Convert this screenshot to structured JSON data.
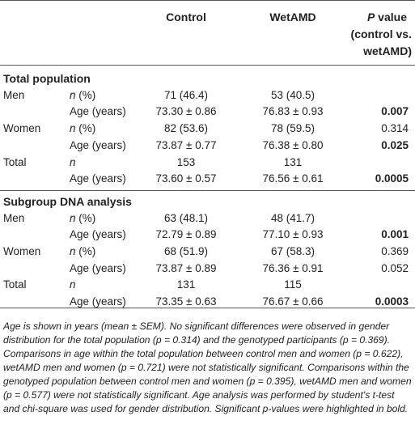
{
  "header": {
    "col_control": "Control",
    "col_wetamd": "WetAMD",
    "col_p_line1_em": "P",
    "col_p_line1_rest": " value",
    "col_p_line2": "(control vs.",
    "col_p_line3": "wetAMD)"
  },
  "sections": [
    {
      "title": "Total population",
      "rows": [
        {
          "group": "Men",
          "measure": "n (%)",
          "measure_italic_n": true,
          "control": "71 (46.4)",
          "wetamd": "53 (40.5)",
          "p": "",
          "p_bold": false
        },
        {
          "group": "",
          "measure": "Age (years)",
          "control": "73.30 ± 0.86",
          "wetamd": "76.83 ± 0.93",
          "p": "0.007",
          "p_bold": true
        },
        {
          "group": "Women",
          "measure": "n (%)",
          "control": "82 (53.6)",
          "wetamd": "78 (59.5)",
          "p": "0.314",
          "p_bold": false
        },
        {
          "group": "",
          "measure": "Age (years)",
          "control": "73.87 ± 0.77",
          "wetamd": "76.38 ± 0.80",
          "p": "0.025",
          "p_bold": true
        },
        {
          "group": "Total",
          "measure": "n",
          "control": "153",
          "wetamd": "131",
          "p": "",
          "p_bold": false
        },
        {
          "group": "",
          "measure": "Age (years)",
          "control": "73.60 ± 0.57",
          "wetamd": "76.56 ± 0.61",
          "p": "0.0005",
          "p_bold": true
        }
      ]
    },
    {
      "title": "Subgroup DNA analysis",
      "rows": [
        {
          "group": "Men",
          "measure": "n (%)",
          "control": "63 (48.1)",
          "wetamd": "48 (41.7)",
          "p": "",
          "p_bold": false
        },
        {
          "group": "",
          "measure": "Age (years)",
          "control": "72.79 ± 0.89",
          "wetamd": "77.10 ± 0.93",
          "p": "0.001",
          "p_bold": true
        },
        {
          "group": "Women",
          "measure": "n (%)",
          "control": "68 (51.9)",
          "wetamd": "67 (58.3)",
          "p": "0.369",
          "p_bold": false
        },
        {
          "group": "",
          "measure": "Age (years)",
          "control": "73.87 ± 0.89",
          "wetamd": "76.36 ± 0.91",
          "p": "0.052",
          "p_bold": false
        },
        {
          "group": "Total",
          "measure": "n",
          "control": "131",
          "wetamd": "115",
          "p": "",
          "p_bold": false
        },
        {
          "group": "",
          "measure": "Age (years)",
          "control": "73.35 ± 0.63",
          "wetamd": "76.67 ± 0.66",
          "p": "0.0003",
          "p_bold": true
        }
      ]
    }
  ],
  "footnote": "Age is shown in years (mean ± SEM). No significant differences were observed in gender distribution for the total population (p = 0.314) and the genotyped participants (p = 0.369). Comparisons in age within the total population between control men and women (p = 0.622), wetAMD men and women (p = 0.721) were not statistically significant. Comparisons within the genotyped population between control men and women (p = 0.395), wetAMD men and women (p = 0.577) were not statistically significant. Age analysis was performed by student's t-test and chi-square was used for gender distribution. Significant p-values were highlighted in bold."
}
